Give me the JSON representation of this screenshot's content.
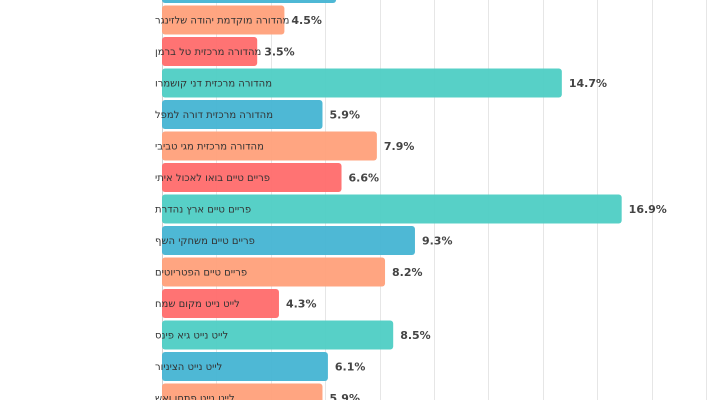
{
  "chart_data": {
    "type": "bar",
    "orientation": "horizontal",
    "xlim": [
      0,
      20
    ],
    "grid": true,
    "value_suffix": "%",
    "categories": [
      "",
      "מהדורה מוקדמת יהודה שלזינגר",
      "מהדורה מרכזית טל ברמן",
      "מהדורה מרכזית דני קושמרו",
      "מהדורה מרכזית דורה למפל",
      "מהדורה מרכזית מגי טביבי",
      "פריים טיים בואו לאכול איתי",
      "פריים טיים ארץ נהדרת",
      "פריים טיים משחקי השף",
      "פריים טיים הפטריוטים",
      "לייט נייט מקום שמח",
      "לייט נייט גיא פינס",
      "לייט נייט הציניור",
      "לייט נייט פתחו ואש"
    ],
    "values": [
      6.4,
      4.5,
      3.5,
      14.7,
      5.9,
      7.9,
      6.6,
      16.9,
      9.3,
      8.2,
      4.3,
      8.5,
      6.1,
      5.9
    ],
    "value_labels": [
      "",
      "4.5%",
      "3.5%",
      "14.7%",
      "5.9%",
      "7.9%",
      "6.6%",
      "16.9%",
      "9.3%",
      "8.2%",
      "4.3%",
      "8.5%",
      "6.1%",
      "5.9%"
    ],
    "colors": [
      "#45b4d3",
      "#ffa07a",
      "#ff6b6b",
      "#4ecdc4"
    ]
  }
}
